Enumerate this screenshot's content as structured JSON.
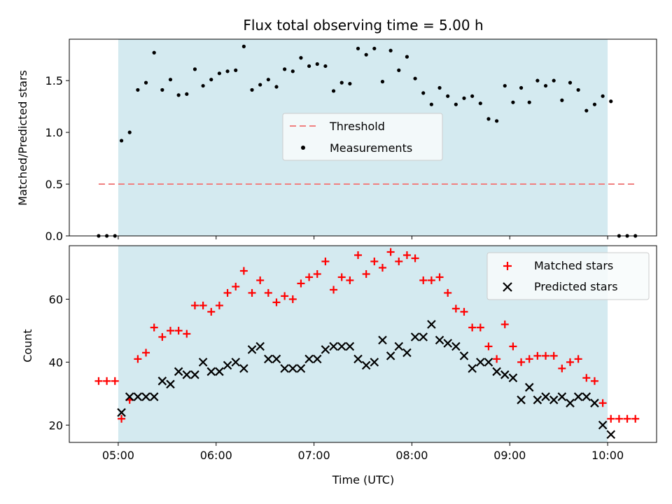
{
  "chart_data": [
    {
      "type": "scatter",
      "title": "Flux total observing time = 5.00 h",
      "xlabel": "",
      "ylabel": "Matched/Predicted stars",
      "xlim": [
        "04:30",
        "10:30"
      ],
      "ylim": [
        0,
        1.9
      ],
      "yticks": [
        "0.0",
        "0.5",
        "1.0",
        "1.5"
      ],
      "grid": false,
      "legend_position": "center",
      "shaded_span": {
        "start": "05:00",
        "end": "10:00",
        "color": "#d4eaf0"
      },
      "threshold": {
        "name": "Threshold",
        "value": 0.5,
        "x_start": "04:48",
        "x_end": "10:18",
        "color": "#f08080",
        "style": "dashed"
      },
      "series": [
        {
          "name": "Measurements",
          "marker": "dot",
          "color": "#000000",
          "x": [
            "04:48",
            "04:53",
            "04:58",
            "05:02",
            "05:07",
            "05:12",
            "05:17",
            "05:22",
            "05:27",
            "05:32",
            "05:37",
            "05:42",
            "05:47",
            "05:52",
            "05:57",
            "06:02",
            "06:07",
            "06:12",
            "06:17",
            "06:22",
            "06:27",
            "06:32",
            "06:37",
            "06:42",
            "06:47",
            "06:52",
            "06:57",
            "07:02",
            "07:07",
            "07:12",
            "07:17",
            "07:22",
            "07:27",
            "07:32",
            "07:37",
            "07:42",
            "07:47",
            "07:52",
            "07:57",
            "08:02",
            "08:07",
            "08:12",
            "08:17",
            "08:22",
            "08:27",
            "08:32",
            "08:37",
            "08:42",
            "08:47",
            "08:52",
            "08:57",
            "09:02",
            "09:07",
            "09:12",
            "09:17",
            "09:22",
            "09:27",
            "09:32",
            "09:37",
            "09:42",
            "09:47",
            "09:52",
            "09:57",
            "10:02",
            "10:07",
            "10:12",
            "10:17"
          ],
          "values": [
            0.0,
            0.0,
            0.0,
            0.92,
            1.0,
            1.41,
            1.48,
            1.77,
            1.41,
            1.51,
            1.36,
            1.37,
            1.61,
            1.45,
            1.51,
            1.57,
            1.59,
            1.6,
            1.83,
            1.41,
            1.46,
            1.51,
            1.44,
            1.61,
            1.59,
            1.72,
            1.64,
            1.66,
            1.64,
            1.4,
            1.48,
            1.47,
            1.81,
            1.75,
            1.81,
            1.49,
            1.79,
            1.6,
            1.73,
            1.52,
            1.38,
            1.27,
            1.43,
            1.35,
            1.27,
            1.33,
            1.35,
            1.28,
            1.13,
            1.11,
            1.45,
            1.29,
            1.43,
            1.29,
            1.5,
            1.45,
            1.5,
            1.31,
            1.48,
            1.41,
            1.21,
            1.27,
            1.35,
            1.3,
            0.0,
            0.0,
            0.0
          ]
        }
      ]
    },
    {
      "type": "scatter",
      "title": "",
      "xlabel": "Time (UTC)",
      "ylabel": "Count",
      "xlim": [
        "04:30",
        "10:30"
      ],
      "xticks": [
        "05:00",
        "06:00",
        "07:00",
        "08:00",
        "09:00",
        "10:00"
      ],
      "ylim": [
        14.5,
        77
      ],
      "yticks": [
        "20",
        "40",
        "60"
      ],
      "grid": false,
      "legend_position": "top-right",
      "shaded_span": {
        "start": "05:00",
        "end": "10:00",
        "color": "#d4eaf0"
      },
      "series": [
        {
          "name": "Matched stars",
          "marker": "plus",
          "color": "#ff0000",
          "x": [
            "04:48",
            "04:53",
            "04:58",
            "05:02",
            "05:07",
            "05:12",
            "05:17",
            "05:22",
            "05:27",
            "05:32",
            "05:37",
            "05:42",
            "05:47",
            "05:52",
            "05:57",
            "06:02",
            "06:07",
            "06:12",
            "06:17",
            "06:22",
            "06:27",
            "06:32",
            "06:37",
            "06:42",
            "06:47",
            "06:52",
            "06:57",
            "07:02",
            "07:07",
            "07:12",
            "07:17",
            "07:22",
            "07:27",
            "07:32",
            "07:37",
            "07:42",
            "07:47",
            "07:52",
            "07:57",
            "08:02",
            "08:07",
            "08:12",
            "08:17",
            "08:22",
            "08:27",
            "08:32",
            "08:37",
            "08:42",
            "08:47",
            "08:52",
            "08:57",
            "09:02",
            "09:07",
            "09:12",
            "09:17",
            "09:22",
            "09:27",
            "09:32",
            "09:37",
            "09:42",
            "09:47",
            "09:52",
            "09:57",
            "10:02",
            "10:07",
            "10:12",
            "10:17"
          ],
          "values": [
            34,
            34,
            34,
            22,
            28,
            41,
            43,
            51,
            48,
            50,
            50,
            49,
            58,
            58,
            56,
            58,
            62,
            64,
            69,
            62,
            66,
            62,
            59,
            61,
            60,
            65,
            67,
            68,
            72,
            63,
            67,
            66,
            74,
            68,
            72,
            70,
            75,
            72,
            74,
            73,
            66,
            66,
            67,
            62,
            57,
            56,
            51,
            51,
            45,
            41,
            52,
            45,
            40,
            41,
            42,
            42,
            42,
            38,
            40,
            41,
            35,
            34,
            27,
            22,
            22,
            22,
            22
          ]
        },
        {
          "name": "Predicted stars",
          "marker": "x",
          "color": "#000000",
          "x": [
            "05:02",
            "05:07",
            "05:12",
            "05:17",
            "05:22",
            "05:27",
            "05:32",
            "05:37",
            "05:42",
            "05:47",
            "05:52",
            "05:57",
            "06:02",
            "06:07",
            "06:12",
            "06:17",
            "06:22",
            "06:27",
            "06:32",
            "06:37",
            "06:42",
            "06:47",
            "06:52",
            "06:57",
            "07:02",
            "07:07",
            "07:12",
            "07:17",
            "07:22",
            "07:27",
            "07:32",
            "07:37",
            "07:42",
            "07:47",
            "07:52",
            "07:57",
            "08:02",
            "08:07",
            "08:12",
            "08:17",
            "08:22",
            "08:27",
            "08:32",
            "08:37",
            "08:42",
            "08:47",
            "08:52",
            "08:57",
            "09:02",
            "09:07",
            "09:12",
            "09:17",
            "09:22",
            "09:27",
            "09:32",
            "09:37",
            "09:42",
            "09:47",
            "09:52",
            "09:57",
            "10:02"
          ],
          "values": [
            24,
            29,
            29,
            29,
            29,
            34,
            33,
            37,
            36,
            36,
            40,
            37,
            37,
            39,
            40,
            38,
            44,
            45,
            41,
            41,
            38,
            38,
            38,
            41,
            41,
            44,
            45,
            45,
            45,
            41,
            39,
            40,
            47,
            42,
            45,
            43,
            48,
            48,
            52,
            47,
            46,
            45,
            42,
            38,
            40,
            40,
            37,
            36,
            35,
            28,
            32,
            28,
            29,
            28,
            29,
            27,
            29,
            29,
            27,
            20,
            17
          ]
        }
      ]
    }
  ]
}
